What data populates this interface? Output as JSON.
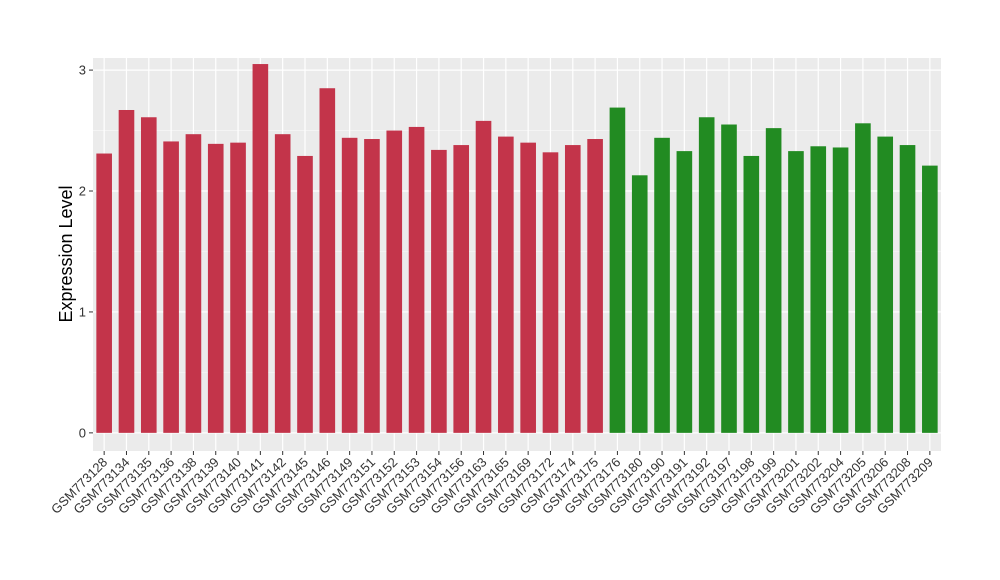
{
  "chart_data": {
    "type": "bar",
    "ylabel": "Expression Level",
    "xlabel": "",
    "ylim": [
      -0.15,
      3.1
    ],
    "yticks": [
      0,
      1,
      2,
      3
    ],
    "grid": true,
    "background": "#EBEBEB",
    "colors": {
      "group1": "#C3344A",
      "group2": "#228B22"
    },
    "categories": [
      "GSM773128",
      "GSM773134",
      "GSM773135",
      "GSM773136",
      "GSM773138",
      "GSM773139",
      "GSM773140",
      "GSM773141",
      "GSM773142",
      "GSM773145",
      "GSM773146",
      "GSM773149",
      "GSM773151",
      "GSM773152",
      "GSM773153",
      "GSM773154",
      "GSM773156",
      "GSM773163",
      "GSM773165",
      "GSM773169",
      "GSM773172",
      "GSM773174",
      "GSM773175",
      "GSM773176",
      "GSM773180",
      "GSM773190",
      "GSM773191",
      "GSM773192",
      "GSM773197",
      "GSM773198",
      "GSM773199",
      "GSM773201",
      "GSM773202",
      "GSM773204",
      "GSM773205",
      "GSM773206",
      "GSM773208",
      "GSM773209"
    ],
    "values": [
      2.31,
      2.67,
      2.61,
      2.41,
      2.47,
      2.39,
      2.4,
      3.05,
      2.47,
      2.29,
      2.85,
      2.44,
      2.43,
      2.5,
      2.53,
      2.34,
      2.38,
      2.58,
      2.45,
      2.4,
      2.32,
      2.38,
      2.43,
      2.69,
      2.13,
      2.44,
      2.33,
      2.61,
      2.55,
      2.29,
      2.52,
      2.33,
      2.37,
      2.36,
      2.56,
      2.45,
      2.38,
      2.21
    ],
    "groups": [
      1,
      1,
      1,
      1,
      1,
      1,
      1,
      1,
      1,
      1,
      1,
      1,
      1,
      1,
      1,
      1,
      1,
      1,
      1,
      1,
      1,
      1,
      1,
      2,
      2,
      2,
      2,
      2,
      2,
      2,
      2,
      2,
      2,
      2,
      2,
      2,
      2,
      2
    ]
  }
}
